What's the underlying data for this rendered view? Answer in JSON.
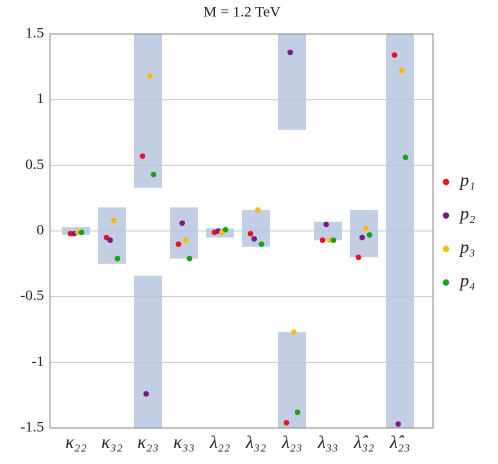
{
  "chart_data": {
    "type": "scatter",
    "title": "M = 1.2 TeV",
    "categories": [
      "κ₂₂",
      "κ₃₂",
      "κ₂₃",
      "κ₃₃",
      "λ₂₂",
      "λ₃₂",
      "λ₂₃",
      "λ₃₃",
      "λ̂₃₂",
      "λ̂₂₃"
    ],
    "bands": [
      [
        [
          -0.03,
          0.03
        ]
      ],
      [
        [
          -0.25,
          0.18
        ]
      ],
      [
        [
          0.33,
          1.5
        ],
        [
          -1.5,
          -0.34
        ]
      ],
      [
        [
          -0.21,
          0.18
        ]
      ],
      [
        [
          -0.05,
          0.02
        ]
      ],
      [
        [
          -0.12,
          0.16
        ]
      ],
      [
        [
          0.77,
          1.5
        ],
        [
          -1.5,
          -0.77
        ]
      ],
      [
        [
          -0.07,
          0.07
        ]
      ],
      [
        [
          -0.2,
          0.16
        ]
      ],
      [
        [
          -1.5,
          1.5
        ]
      ]
    ],
    "band_color": "#b7c5df",
    "series": [
      {
        "name": "p₁",
        "color": "#e8141e",
        "values": [
          -0.02,
          -0.05,
          0.57,
          -0.1,
          -0.01,
          -0.02,
          -1.46,
          -0.07,
          -0.2,
          1.34
        ]
      },
      {
        "name": "p₂",
        "color": "#7a1a82",
        "values": [
          -0.02,
          -0.07,
          -1.24,
          0.06,
          0,
          -0.06,
          1.36,
          0.05,
          -0.05,
          -1.47
        ]
      },
      {
        "name": "p₃",
        "color": "#f7bd0a",
        "values": [
          -0.01,
          0.08,
          1.18,
          -0.07,
          -0.01,
          0.16,
          -0.77,
          -0.07,
          0.02,
          1.22
        ]
      },
      {
        "name": "p₄",
        "color": "#16a116",
        "values": [
          -0.01,
          -0.21,
          0.43,
          -0.21,
          0.01,
          -0.1,
          -1.38,
          -0.07,
          -0.03,
          0.56
        ]
      }
    ],
    "ylim": [
      -1.5,
      1.5
    ],
    "yticks": [
      -1.5,
      -1,
      -0.5,
      0,
      0.5,
      1,
      1.5
    ],
    "grid": true
  }
}
